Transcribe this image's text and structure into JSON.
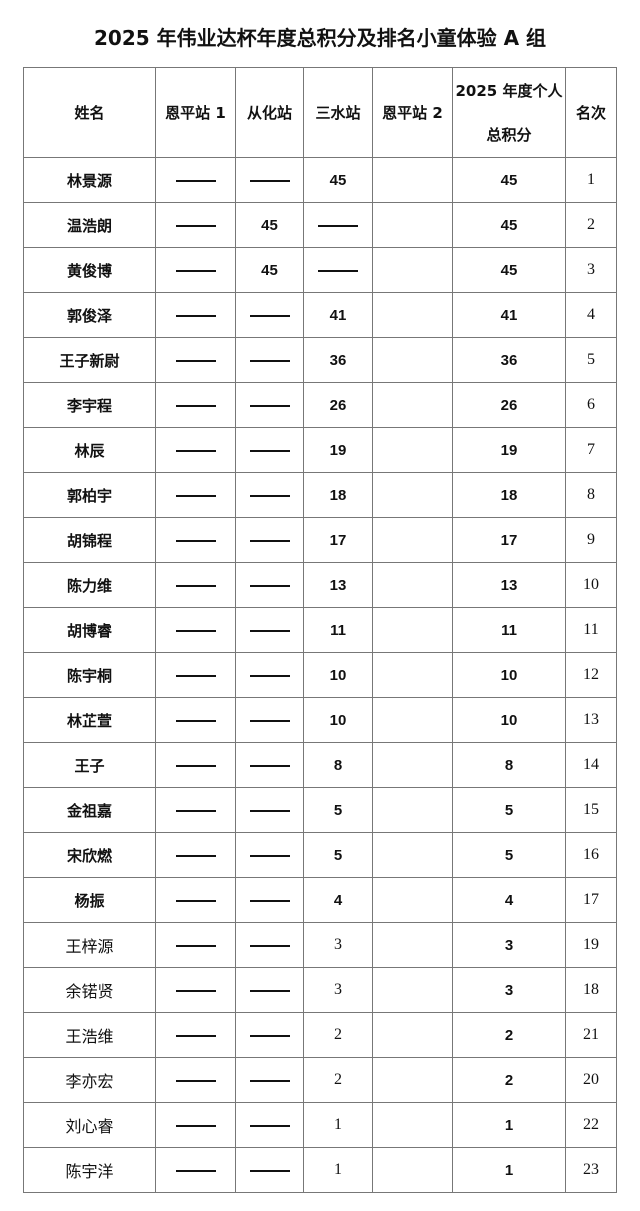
{
  "title": "2025 年伟业达杯年度总积分及排名小童体验 A 组",
  "headers": {
    "name": "姓名",
    "s1": "恩平站 1",
    "s2": "从化站",
    "s3": "三水站",
    "s4": "恩平站 2",
    "total_line1": "2025 年度个人",
    "total_line2": "总积分",
    "rank": "名次"
  },
  "rows": [
    {
      "name": "林景源",
      "s1": "—",
      "s2": "—",
      "s3": "45",
      "s4": "",
      "total": "45",
      "rank": "1"
    },
    {
      "name": "温浩朗",
      "s1": "—",
      "s2": "45",
      "s3": "—",
      "s4": "",
      "total": "45",
      "rank": "2"
    },
    {
      "name": "黄俊博",
      "s1": "—",
      "s2": "45",
      "s3": "—",
      "s4": "",
      "total": "45",
      "rank": "3"
    },
    {
      "name": "郭俊泽",
      "s1": "—",
      "s2": "—",
      "s3": "41",
      "s4": "",
      "total": "41",
      "rank": "4"
    },
    {
      "name": "王子新尉",
      "s1": "—",
      "s2": "—",
      "s3": "36",
      "s4": "",
      "total": "36",
      "rank": "5"
    },
    {
      "name": "李宇程",
      "s1": "—",
      "s2": "—",
      "s3": "26",
      "s4": "",
      "total": "26",
      "rank": "6"
    },
    {
      "name": "林辰",
      "s1": "—",
      "s2": "—",
      "s3": "19",
      "s4": "",
      "total": "19",
      "rank": "7"
    },
    {
      "name": "郭柏宇",
      "s1": "—",
      "s2": "—",
      "s3": "18",
      "s4": "",
      "total": "18",
      "rank": "8"
    },
    {
      "name": "胡锦程",
      "s1": "—",
      "s2": "—",
      "s3": "17",
      "s4": "",
      "total": "17",
      "rank": "9"
    },
    {
      "name": "陈力维",
      "s1": "—",
      "s2": "—",
      "s3": "13",
      "s4": "",
      "total": "13",
      "rank": "10"
    },
    {
      "name": "胡博睿",
      "s1": "—",
      "s2": "—",
      "s3": "11",
      "s4": "",
      "total": "11",
      "rank": "11"
    },
    {
      "name": "陈宇桐",
      "s1": "—",
      "s2": "—",
      "s3": "10",
      "s4": "",
      "total": "10",
      "rank": "12"
    },
    {
      "name": "林芷萱",
      "s1": "—",
      "s2": "—",
      "s3": "10",
      "s4": "",
      "total": "10",
      "rank": "13"
    },
    {
      "name": "王子",
      "s1": "—",
      "s2": "—",
      "s3": "8",
      "s4": "",
      "total": "8",
      "rank": "14"
    },
    {
      "name": "金祖嘉",
      "s1": "—",
      "s2": "—",
      "s3": "5",
      "s4": "",
      "total": "5",
      "rank": "15"
    },
    {
      "name": "宋欣燃",
      "s1": "—",
      "s2": "—",
      "s3": "5",
      "s4": "",
      "total": "5",
      "rank": "16"
    },
    {
      "name": "杨振",
      "s1": "—",
      "s2": "—",
      "s3": "4",
      "s4": "",
      "total": "4",
      "rank": "17"
    },
    {
      "name": "王梓源",
      "s1": "—",
      "s2": "—",
      "s3": "3",
      "s4": "",
      "total": "3",
      "rank": "19"
    },
    {
      "name": "余锘贤",
      "s1": "—",
      "s2": "—",
      "s3": "3",
      "s4": "",
      "total": "3",
      "rank": "18"
    },
    {
      "name": "王浩维",
      "s1": "—",
      "s2": "—",
      "s3": "2",
      "s4": "",
      "total": "2",
      "rank": "21"
    },
    {
      "name": "李亦宏",
      "s1": "—",
      "s2": "—",
      "s3": "2",
      "s4": "",
      "total": "2",
      "rank": "20"
    },
    {
      "name": "刘心睿",
      "s1": "—",
      "s2": "—",
      "s3": "1",
      "s4": "",
      "total": "1",
      "rank": "22"
    },
    {
      "name": "陈宇洋",
      "s1": "—",
      "s2": "—",
      "s3": "1",
      "s4": "",
      "total": "1",
      "rank": "23"
    }
  ]
}
